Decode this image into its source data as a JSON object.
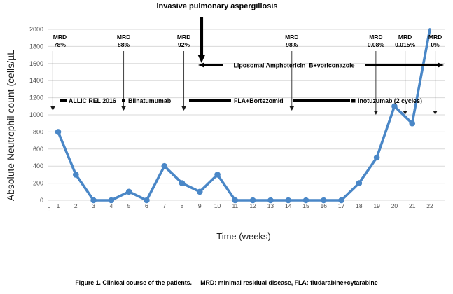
{
  "figure": {
    "caption": "Figure 1. Clinical course of the patients.     MRD: minimal residual disease, FLA: fludarabine+cytarabine"
  },
  "chart_data": {
    "type": "line",
    "title": "",
    "xlabel": "Time (weeks)",
    "ylabel": "Absolute Neutrophil count (cells/µL",
    "series": [
      {
        "name": "Absolute Neutrophil count",
        "x": [
          1,
          2,
          3,
          4,
          5,
          6,
          7,
          8,
          9,
          10,
          11,
          12,
          13,
          14,
          15,
          16,
          17,
          18,
          19,
          20,
          21,
          22
        ],
        "values": [
          800,
          300,
          0,
          0,
          100,
          0,
          400,
          200,
          100,
          300,
          0,
          0,
          0,
          0,
          0,
          0,
          0,
          200,
          500,
          1100,
          900,
          2000
        ]
      }
    ],
    "ylim": [
      0,
      2000
    ],
    "yticks": [
      0,
      200,
      400,
      600,
      800,
      1000,
      1200,
      1400,
      1600,
      1800,
      2000
    ],
    "xticks": [
      0,
      1,
      2,
      3,
      4,
      5,
      6,
      7,
      8,
      9,
      10,
      11,
      12,
      13,
      14,
      15,
      16,
      17,
      18,
      19,
      20,
      21,
      22
    ],
    "grid": true,
    "legend": "none",
    "line_color": "#4a87c7",
    "grid_color": "#d9d9d9",
    "tick_color": "#4d4d4d",
    "annotation_color": "#000000",
    "annotations": {
      "event": {
        "title": "Invasive pulmonary aspergillosis",
        "week": 9.1
      },
      "mrd_markers": [
        {
          "label": "MRD",
          "value": "78%",
          "week": 0.7,
          "text_dx": 10,
          "tip": "high"
        },
        {
          "label": "MRD",
          "value": "88%",
          "week": 4.7,
          "tip": "high"
        },
        {
          "label": "MRD",
          "value": "92%",
          "week": 8.1,
          "tip": "high"
        },
        {
          "label": "MRD",
          "value": "98%",
          "week": 14.2,
          "tip": "high"
        },
        {
          "label": "MRD",
          "value": "0.08%",
          "week": 18.95,
          "tip": "low"
        },
        {
          "label": "MRD",
          "value": "0.015%",
          "week": 20.6,
          "tip": "low"
        },
        {
          "label": "MRD",
          "value": "0%",
          "week": 22.3,
          "tip": "low"
        }
      ],
      "antifungal_label": "Liposomal Amphotericin  B+voriconazole",
      "treatments": [
        {
          "label": "ALLIC REL 2016"
        },
        {
          "label": "Blinatumumab"
        },
        {
          "label": "FLA+Bortezomid"
        },
        {
          "label": "Inotuzumab (2 cycles)"
        }
      ]
    }
  }
}
